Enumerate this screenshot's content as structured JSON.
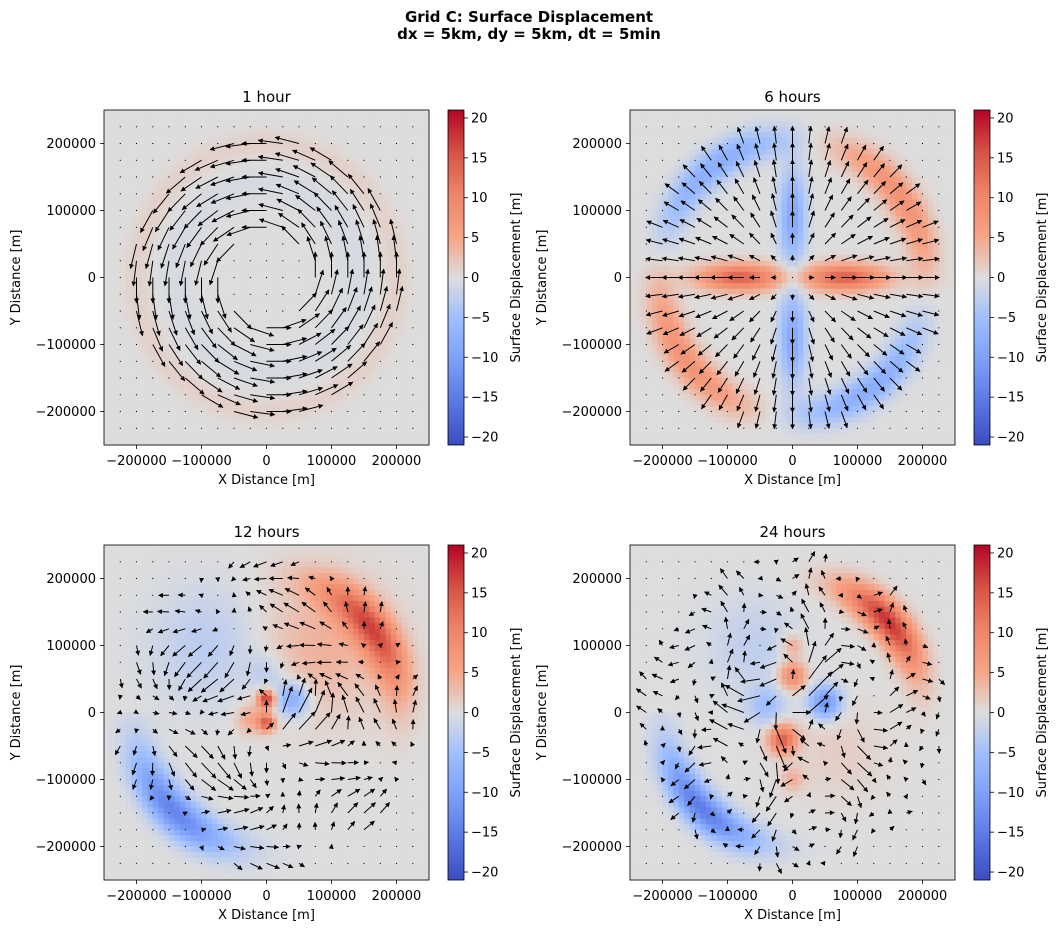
{
  "figure": {
    "title_line1": "Grid C: Surface Displacement",
    "title_line2": "dx = 5km, dy = 5km, dt = 5min"
  },
  "colors": {
    "neutral": "#dddddd",
    "red_max": "#b40426",
    "blue_max": "#3b4cc0",
    "arrow": "#000000"
  },
  "colorbar": {
    "label": "Surface Displacement [m]",
    "colormap": "coolwarm",
    "range": [
      -21,
      21
    ],
    "ticks": [
      20,
      15,
      10,
      5,
      0,
      -5,
      -10,
      -15,
      -20
    ],
    "tick_labels": [
      "20",
      "15",
      "10",
      "5",
      "0",
      "−5",
      "−10",
      "−15",
      "−20"
    ]
  },
  "chart_data": [
    {
      "type": "heatmap",
      "title": "1 hour",
      "xlabel": "X Distance [m]",
      "ylabel": "Y Distance [m]",
      "xlim": [
        -250000,
        250000
      ],
      "ylim": [
        -250000,
        250000
      ],
      "x_ticks": [
        -200000,
        -100000,
        0,
        100000,
        200000
      ],
      "x_tick_labels": [
        "−200000",
        "−100000",
        "0",
        "100000",
        "200000"
      ],
      "y_ticks": [
        200000,
        100000,
        0,
        -100000,
        -200000
      ],
      "y_tick_labels": [
        "200000",
        "100000",
        "0",
        "−100000",
        "−200000"
      ],
      "overlay": "quiver (velocity arrows)",
      "field": "weak counter-clockwise spiral, near-zero displacement",
      "displacement_range": [
        -2,
        2
      ]
    },
    {
      "type": "heatmap",
      "title": "6 hours",
      "xlabel": "X Distance [m]",
      "ylabel": "Y Distance [m]",
      "xlim": [
        -250000,
        250000
      ],
      "ylim": [
        -250000,
        250000
      ],
      "x_ticks": [
        -200000,
        -100000,
        0,
        100000,
        200000
      ],
      "x_tick_labels": [
        "−200000",
        "−100000",
        "0",
        "100000",
        "200000"
      ],
      "y_ticks": [
        200000,
        100000,
        0,
        -100000,
        -200000
      ],
      "y_tick_labels": [
        "200000",
        "100000",
        "0",
        "−100000",
        "−200000"
      ],
      "overlay": "quiver (velocity arrows)",
      "field": "positive ring NE/SW-quadrant pattern with red cross along x-axis, blue along y-axis",
      "displacement_range": [
        -12,
        15
      ]
    },
    {
      "type": "heatmap",
      "title": "12 hours",
      "xlabel": "X Distance [m]",
      "ylabel": "Y Distance [m]",
      "xlim": [
        -250000,
        250000
      ],
      "ylim": [
        -250000,
        250000
      ],
      "x_ticks": [
        -200000,
        -100000,
        0,
        100000,
        200000
      ],
      "x_tick_labels": [
        "−200000",
        "−100000",
        "0",
        "100000",
        "200000"
      ],
      "y_ticks": [
        200000,
        100000,
        0,
        -100000,
        -200000
      ],
      "y_tick_labels": [
        "200000",
        "100000",
        "0",
        "−100000",
        "−200000"
      ],
      "overlay": "quiver (velocity arrows)",
      "field": "red band in NE, blue band in SW, small dipole near centre",
      "displacement_range": [
        -15,
        20
      ]
    },
    {
      "type": "heatmap",
      "title": "24 hours",
      "xlabel": "X Distance [m]",
      "ylabel": "Y Distance [m]",
      "xlim": [
        -250000,
        250000
      ],
      "ylim": [
        -250000,
        250000
      ],
      "x_ticks": [
        -200000,
        -100000,
        0,
        100000,
        200000
      ],
      "x_tick_labels": [
        "−200000",
        "−100000",
        "0",
        "100000",
        "200000"
      ],
      "y_ticks": [
        200000,
        100000,
        0,
        -100000,
        -200000
      ],
      "y_tick_labels": [
        "200000",
        "100000",
        "0",
        "−100000",
        "−200000"
      ],
      "overlay": "quiver (velocity arrows)",
      "field": "red band in NE, blue band in SW, multiple blobs near centre",
      "displacement_range": [
        -16,
        20
      ]
    }
  ]
}
